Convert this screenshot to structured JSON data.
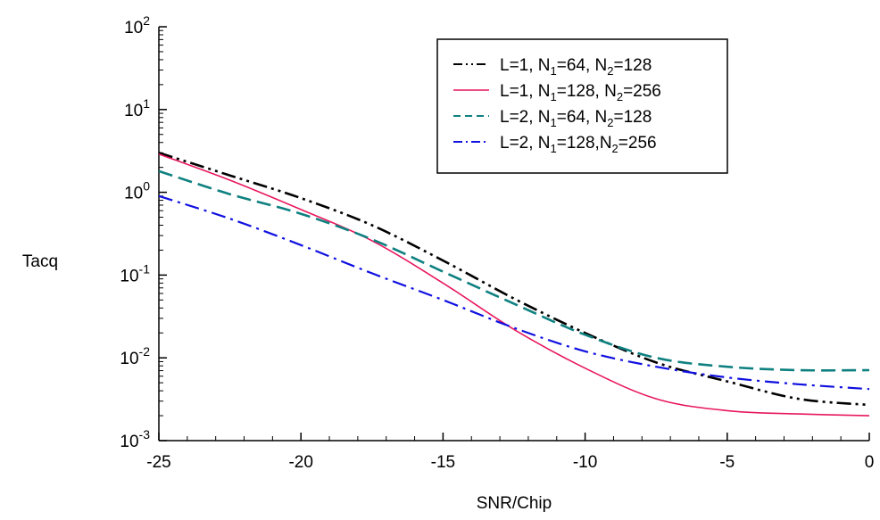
{
  "chart_data": {
    "type": "line",
    "title": "",
    "xlabel": "SNR/Chip",
    "ylabel": "Tacq",
    "xlim": [
      -25,
      0
    ],
    "ylim": [
      0.001,
      100
    ],
    "y_scale": "log",
    "grid": false,
    "legend_position": "top-right",
    "x_ticks": [
      -25,
      -20,
      -15,
      -10,
      -5,
      0
    ],
    "x_tick_labels": [
      "-25",
      "-20",
      "-15",
      "-10",
      "-5",
      "0"
    ],
    "y_ticks": [
      {
        "value": 0.001,
        "base": "10",
        "exp": "-3"
      },
      {
        "value": 0.01,
        "base": "10",
        "exp": "-2"
      },
      {
        "value": 0.1,
        "base": "10",
        "exp": "-1"
      },
      {
        "value": 1,
        "base": "10",
        "exp": "0"
      },
      {
        "value": 10,
        "base": "10",
        "exp": "1"
      },
      {
        "value": 100,
        "base": "10",
        "exp": "2"
      }
    ],
    "series": [
      {
        "name": "L=1, N1=64, N2=128",
        "legend_parts": [
          "L=1, N",
          "1",
          "=64, N",
          "2",
          "=128"
        ],
        "color": "#000000",
        "style": "dash-dot-dot",
        "x": [
          -25,
          -22.5,
          -20,
          -17.5,
          -15,
          -12.5,
          -10,
          -7.5,
          -5,
          -2.5,
          0
        ],
        "y": [
          3.0,
          1.6,
          0.85,
          0.4,
          0.15,
          0.052,
          0.02,
          0.0088,
          0.0052,
          0.0032,
          0.0027
        ]
      },
      {
        "name": "L=1, N1=128, N2=256",
        "legend_parts": [
          "L=1, N",
          "1",
          "=128, N",
          "2",
          "=256"
        ],
        "color": "#e8175d",
        "style": "solid",
        "x": [
          -25,
          -22.5,
          -20,
          -17.5,
          -15,
          -12.5,
          -10,
          -7.5,
          -5,
          -2.5,
          0
        ],
        "y": [
          2.9,
          1.4,
          0.62,
          0.26,
          0.08,
          0.022,
          0.0075,
          0.0032,
          0.0023,
          0.0021,
          0.002
        ]
      },
      {
        "name": "L=2, N1=64, N2=128",
        "legend_parts": [
          "L=2, N",
          "1",
          "=64, N",
          "2",
          "=128"
        ],
        "color": "#0f8080",
        "style": "dashed",
        "x": [
          -25,
          -22.5,
          -20,
          -17.5,
          -15,
          -12.5,
          -10,
          -7.5,
          -5,
          -2.5,
          0
        ],
        "y": [
          1.8,
          0.95,
          0.55,
          0.27,
          0.11,
          0.045,
          0.019,
          0.01,
          0.0078,
          0.0071,
          0.0071
        ]
      },
      {
        "name": "L=2, N1=128,N2=256",
        "legend_parts": [
          "L=2, N",
          "1",
          "=128,N",
          "2",
          "=256"
        ],
        "color": "#1010e0",
        "style": "dash-dot",
        "x": [
          -25,
          -22.5,
          -20,
          -17.5,
          -15,
          -12.5,
          -10,
          -7.5,
          -5,
          -2.5,
          0
        ],
        "y": [
          0.9,
          0.48,
          0.23,
          0.105,
          0.05,
          0.023,
          0.012,
          0.0078,
          0.0058,
          0.0048,
          0.0042
        ]
      }
    ]
  }
}
